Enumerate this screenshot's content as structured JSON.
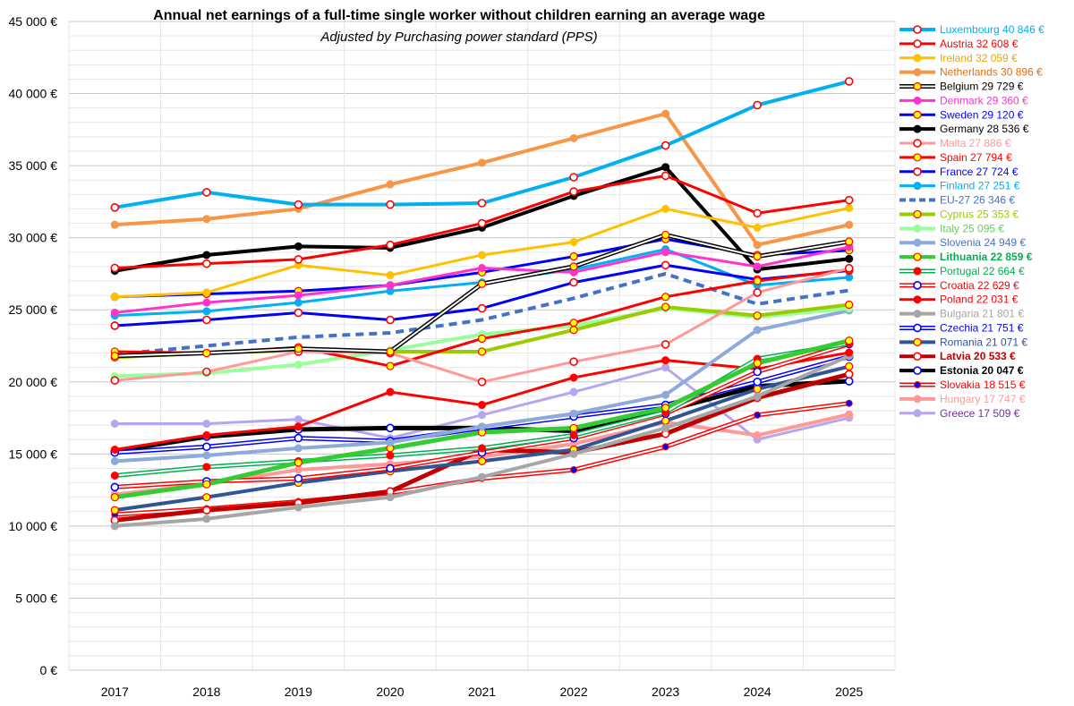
{
  "chart_data": {
    "type": "line",
    "title": "Annual net earnings of a full-time single worker without children earning an average wage",
    "subtitle": "Adjusted by Purchasing power standard (PPS)",
    "x": [
      "2017",
      "2018",
      "2019",
      "2020",
      "2021",
      "2022",
      "2023",
      "2024",
      "2025"
    ],
    "ylim": [
      0,
      45000
    ],
    "yticks": [
      0,
      5000,
      10000,
      15000,
      20000,
      25000,
      30000,
      35000,
      40000,
      45000
    ],
    "ytick_labels": [
      "0 €",
      "5 000 €",
      "10 000 €",
      "15 000 €",
      "20 000 €",
      "25 000 €",
      "30 000 €",
      "35 000 €",
      "40 000 €",
      "45 000 €"
    ],
    "grid": true,
    "legend_position": "right",
    "series": [
      {
        "name": "Luxembourg",
        "legend": "Luxembourg 40 846 €",
        "color": "#00b0f0",
        "text_color": "#00b0f0",
        "width": 4,
        "marker": "open-red",
        "values": [
          32100,
          33150,
          32300,
          32300,
          32400,
          34200,
          36400,
          39200,
          40846
        ]
      },
      {
        "name": "Austria",
        "legend": "Austria 32 608 €",
        "color": "#ff0000",
        "text_color": "#ff0000",
        "width": 3,
        "marker": "open-red",
        "values": [
          27900,
          28200,
          28500,
          29500,
          31000,
          33200,
          34300,
          31700,
          32608
        ]
      },
      {
        "name": "Ireland",
        "legend": "Ireland 32 059 €",
        "color": "#ffc000",
        "text_color": "#e6a800",
        "width": 3,
        "marker": "solid",
        "values": [
          25900,
          26200,
          28100,
          27400,
          28800,
          29700,
          32000,
          30700,
          32059
        ]
      },
      {
        "name": "Netherlands",
        "legend": "Netherlands 30 896 €",
        "color": "#f79646",
        "text_color": "#e46c0a",
        "width": 4,
        "marker": "solid",
        "values": [
          30900,
          31300,
          32000,
          33700,
          35200,
          36900,
          38600,
          29500,
          30896
        ]
      },
      {
        "name": "Belgium",
        "legend": "Belgium 29 729 €",
        "color": "#000000",
        "text_color": "#000000",
        "width": 1.5,
        "double": true,
        "marker": "yellow",
        "values": [
          21800,
          22000,
          22300,
          22100,
          26800,
          28000,
          30200,
          28700,
          29729
        ]
      },
      {
        "name": "Denmark",
        "legend": "Denmark 29 360 €",
        "color": "#ff33cc",
        "text_color": "#ff33cc",
        "width": 3,
        "marker": "solid",
        "values": [
          24800,
          25500,
          26000,
          26700,
          27900,
          27600,
          29000,
          28000,
          29360
        ]
      },
      {
        "name": "Sweden",
        "legend": "Sweden 29 120 €",
        "color": "#0000ff",
        "text_color": "#0000ff",
        "width": 3,
        "marker": "yellow",
        "values": [
          25900,
          26100,
          26300,
          26700,
          27600,
          28700,
          29900,
          28800,
          29120
        ]
      },
      {
        "name": "Germany",
        "legend": "Germany 28 536 €",
        "color": "#000000",
        "text_color": "#000000",
        "width": 4,
        "marker": "solid",
        "values": [
          27700,
          28800,
          29400,
          29300,
          30700,
          32900,
          34900,
          27800,
          28536
        ]
      },
      {
        "name": "Malta",
        "legend": "Malta 27 886 €",
        "color": "#ff9999",
        "text_color": "#ff9999",
        "width": 3,
        "marker": "open-red",
        "values": [
          20100,
          20700,
          22100,
          22000,
          20000,
          21400,
          22600,
          26200,
          27886
        ]
      },
      {
        "name": "Spain",
        "legend": "Spain 27 794 €",
        "color": "#ff0000",
        "text_color": "#ff0000",
        "width": 3,
        "marker": "yellow",
        "values": [
          22100,
          22000,
          22400,
          21100,
          23000,
          24100,
          25900,
          27000,
          27794
        ]
      },
      {
        "name": "France",
        "legend": "France 27 724 €",
        "color": "#0000ff",
        "text_color": "#0000ff",
        "width": 3,
        "marker": "open-red",
        "values": [
          23900,
          24300,
          24800,
          24300,
          25100,
          26900,
          28100,
          27100,
          27724
        ]
      },
      {
        "name": "Finland",
        "legend": "Finland 27 251 €",
        "color": "#00b0f0",
        "text_color": "#00b0f0",
        "width": 3,
        "marker": "solid",
        "values": [
          24600,
          24900,
          25500,
          26300,
          26900,
          27800,
          29200,
          26700,
          27251
        ]
      },
      {
        "name": "EU-27",
        "legend": "EU-27 26 346 €",
        "color": "#4472c4",
        "text_color": "#4472c4",
        "width": 4,
        "dashed": true,
        "marker": "none",
        "values": [
          21900,
          22500,
          23100,
          23400,
          24300,
          25800,
          27500,
          25400,
          26346
        ]
      },
      {
        "name": "Cyprus",
        "legend": "Cyprus 25 353 €",
        "color": "#99cc00",
        "text_color": "#99cc00",
        "width": 4,
        "marker": "yellow",
        "values": [
          21700,
          22000,
          22200,
          22100,
          22100,
          23600,
          25200,
          24600,
          25353
        ]
      },
      {
        "name": "Italy",
        "legend": "Italy 25 095 €",
        "color": "#99ff99",
        "text_color": "#66cc66",
        "width": 4,
        "marker": "solid",
        "values": [
          20400,
          20600,
          21200,
          22200,
          23300,
          23900,
          25100,
          24500,
          25095
        ]
      },
      {
        "name": "Slovenia",
        "legend": "Slovenia 24 949 €",
        "color": "#8eaadb",
        "text_color": "#4472c4",
        "width": 4,
        "marker": "solid",
        "values": [
          14500,
          14900,
          15400,
          15800,
          16900,
          17800,
          19100,
          23600,
          24949
        ]
      },
      {
        "name": "Lithuania",
        "legend": "Lithuania 22 859 €",
        "color": "#33cc33",
        "text_color": "#00b050",
        "width": 5,
        "bold": true,
        "marker": "yellow",
        "values": [
          12000,
          12900,
          14400,
          15400,
          16500,
          16800,
          18200,
          21300,
          22859
        ]
      },
      {
        "name": "Portugal",
        "legend": "Portugal 22 664 €",
        "color": "#00b050",
        "text_color": "#00b050",
        "width": 1.5,
        "double": true,
        "marker": "red",
        "values": [
          13500,
          14100,
          14500,
          14900,
          15400,
          16300,
          17900,
          21600,
          22664
        ]
      },
      {
        "name": "Croatia",
        "legend": "Croatia 22 629 €",
        "color": "#ff0000",
        "text_color": "#ff0000",
        "width": 1.5,
        "double": true,
        "marker": "open-blue",
        "values": [
          12700,
          13100,
          13300,
          14000,
          15100,
          16100,
          17800,
          20700,
          22629
        ]
      },
      {
        "name": "Poland",
        "legend": "Poland 22 031 €",
        "color": "#ff0000",
        "text_color": "#ff0000",
        "width": 3,
        "marker": "red",
        "values": [
          15300,
          16300,
          16900,
          19300,
          18400,
          20300,
          21500,
          20900,
          22031
        ]
      },
      {
        "name": "Bulgaria",
        "legend": "Bulgaria 21 801 €",
        "color": "#a6a6a6",
        "text_color": "#a6a6a6",
        "width": 4,
        "marker": "solid",
        "values": [
          10000,
          10500,
          11300,
          12000,
          13400,
          15000,
          16800,
          19000,
          21801
        ]
      },
      {
        "name": "Czechia",
        "legend": "Czechia 21 751 €",
        "color": "#0000ff",
        "text_color": "#0000ff",
        "width": 1.5,
        "double": true,
        "marker": "open-blue",
        "values": [
          15100,
          15500,
          16100,
          15900,
          16800,
          17600,
          18400,
          20000,
          21751
        ]
      },
      {
        "name": "Romania",
        "legend": "Romania 21 071 €",
        "color": "#2f5597",
        "text_color": "#2f5597",
        "width": 4,
        "marker": "yellow",
        "values": [
          11100,
          12000,
          13000,
          13800,
          14500,
          15300,
          17300,
          19500,
          21071
        ]
      },
      {
        "name": "Latvia",
        "legend": "Latvia 20 533 €",
        "color": "#c00000",
        "text_color": "#c00000",
        "width": 5,
        "bold": true,
        "marker": "open-red",
        "values": [
          10400,
          11100,
          11600,
          12400,
          15300,
          15100,
          16400,
          18900,
          20533
        ]
      },
      {
        "name": "Estonia",
        "legend": "Estonia 20 047 €",
        "color": "#000000",
        "text_color": "#000000",
        "width": 5,
        "bold": true,
        "marker": "open-blue",
        "values": [
          15200,
          16200,
          16700,
          16800,
          16800,
          16600,
          18000,
          19700,
          20047
        ]
      },
      {
        "name": "Slovakia",
        "legend": "Slovakia 18 515 €",
        "color": "#ff0000",
        "text_color": "#ff0000",
        "width": 1.5,
        "double": true,
        "marker": "blue",
        "values": [
          10800,
          11200,
          11700,
          12300,
          13300,
          13900,
          15500,
          17700,
          18515
        ]
      },
      {
        "name": "Hungary",
        "legend": "Hungary 17 747 €",
        "color": "#ff9999",
        "text_color": "#ff9999",
        "width": 4,
        "marker": "solid",
        "values": [
          12200,
          12900,
          13900,
          14300,
          14800,
          15700,
          17200,
          16300,
          17747
        ]
      },
      {
        "name": "Greece",
        "legend": "Greece 17 509 €",
        "color": "#b4a7f0",
        "text_color": "#7030a0",
        "width": 3,
        "marker": "solid",
        "values": [
          17100,
          17100,
          17400,
          16100,
          17700,
          19300,
          21000,
          16000,
          17509
        ]
      }
    ]
  }
}
